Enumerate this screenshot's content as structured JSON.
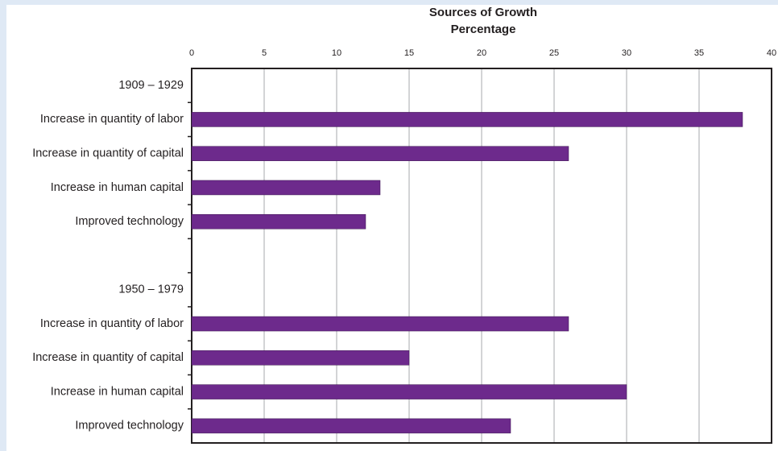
{
  "chart_data": {
    "type": "hbar",
    "title": "Sources of Growth",
    "xlabel": "Percentage",
    "categories": [
      "1909 – 1929",
      "Increase in quantity of labor",
      "Increase in quantity of capital",
      "Increase in human capital",
      "Improved technology",
      null,
      "1950 – 1979",
      "Increase in quantity of labor",
      "Increase in quantity of capital",
      "Increase in human capital",
      "Improved technology"
    ],
    "values": [
      null,
      38,
      26,
      13,
      12,
      null,
      null,
      26,
      15,
      30,
      22
    ],
    "color": "#6d2a8c",
    "xlim": [
      0,
      40
    ],
    "xticks": [
      0,
      5,
      10,
      15,
      20,
      25,
      30,
      35,
      40
    ],
    "grid": true
  }
}
